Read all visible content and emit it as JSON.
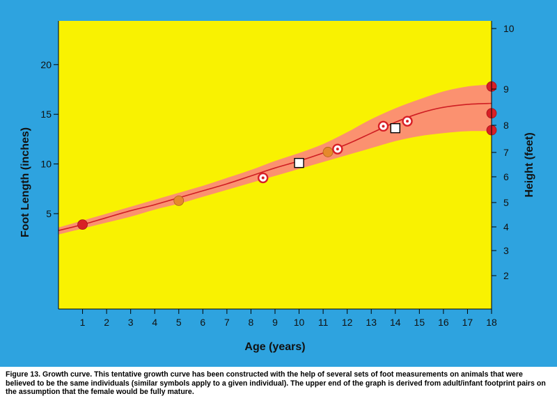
{
  "chart_data": {
    "type": "line",
    "xlabel": "Age (years)",
    "ylabel_left": "Foot Length (inches)",
    "ylabel_right": "Height (feet)",
    "x_ticks": [
      "1",
      "2",
      "3",
      "4",
      "5",
      "6",
      "7",
      "8",
      "9",
      "10",
      "11",
      "12",
      "13",
      "14",
      "15",
      "16",
      "17",
      "18"
    ],
    "left_ticks": [
      5,
      10,
      15,
      20
    ],
    "right_ticks": [
      2,
      3,
      4,
      5,
      6,
      7,
      8,
      9,
      10
    ],
    "xlim": [
      0,
      18
    ],
    "ylim_left": [
      -4.6,
      24.4
    ],
    "colors": {
      "background": "#2ea3df",
      "plot_area": "#f9f201",
      "band": "#fb9170",
      "curve": "#cf1d22",
      "red_marker": "#d81f26",
      "orange_marker": "#e6892b"
    },
    "growth_curve": {
      "x": [
        0,
        1,
        2,
        3,
        4,
        5,
        6,
        7,
        8,
        9,
        10,
        11,
        12,
        13,
        14,
        15,
        16,
        17,
        18
      ],
      "y": [
        3.3,
        3.9,
        4.6,
        5.3,
        5.9,
        6.6,
        7.3,
        8.0,
        8.8,
        9.6,
        10.3,
        11.1,
        12.0,
        13.1,
        14.2,
        15.1,
        15.7,
        16.0,
        16.1
      ]
    },
    "band": {
      "x": [
        0,
        1,
        2,
        3,
        4,
        5,
        6,
        7,
        8,
        9,
        10,
        11,
        12,
        13,
        14,
        15,
        16,
        17,
        18
      ],
      "upper": [
        3.6,
        4.3,
        5.0,
        5.7,
        6.4,
        7.1,
        7.8,
        8.6,
        9.4,
        10.3,
        11.1,
        12.0,
        13.2,
        14.5,
        15.6,
        16.5,
        17.3,
        17.8,
        18.0
      ],
      "lower": [
        2.9,
        3.5,
        4.1,
        4.7,
        5.4,
        6.0,
        6.7,
        7.4,
        8.1,
        8.8,
        9.5,
        10.2,
        10.9,
        11.6,
        12.3,
        12.8,
        13.1,
        13.3,
        13.3
      ]
    },
    "points": [
      {
        "x": 1.0,
        "y": 3.9,
        "marker": "red-filled"
      },
      {
        "x": 5.0,
        "y": 6.3,
        "marker": "orange-filled"
      },
      {
        "x": 8.5,
        "y": 8.6,
        "marker": "red-ring"
      },
      {
        "x": 10.0,
        "y": 10.1,
        "marker": "white-square"
      },
      {
        "x": 11.2,
        "y": 11.2,
        "marker": "orange-filled"
      },
      {
        "x": 11.6,
        "y": 11.5,
        "marker": "red-ring"
      },
      {
        "x": 13.5,
        "y": 13.8,
        "marker": "red-ring"
      },
      {
        "x": 14.0,
        "y": 13.6,
        "marker": "white-square"
      },
      {
        "x": 14.5,
        "y": 14.3,
        "marker": "red-ring"
      },
      {
        "x": 18.0,
        "y": 17.8,
        "marker": "red-filled"
      },
      {
        "x": 18.0,
        "y": 15.1,
        "marker": "red-filled"
      },
      {
        "x": 18.0,
        "y": 13.4,
        "marker": "red-filled"
      }
    ]
  },
  "caption": "Figure 13.  Growth curve. This tentative growth curve has been constructed with the help of several sets of foot measurements on animals that were believed to be the same individuals (similar symbols apply to a given individual). The upper end of the graph is derived from adult/infant footprint pairs on the assumption that the female would be fully mature."
}
